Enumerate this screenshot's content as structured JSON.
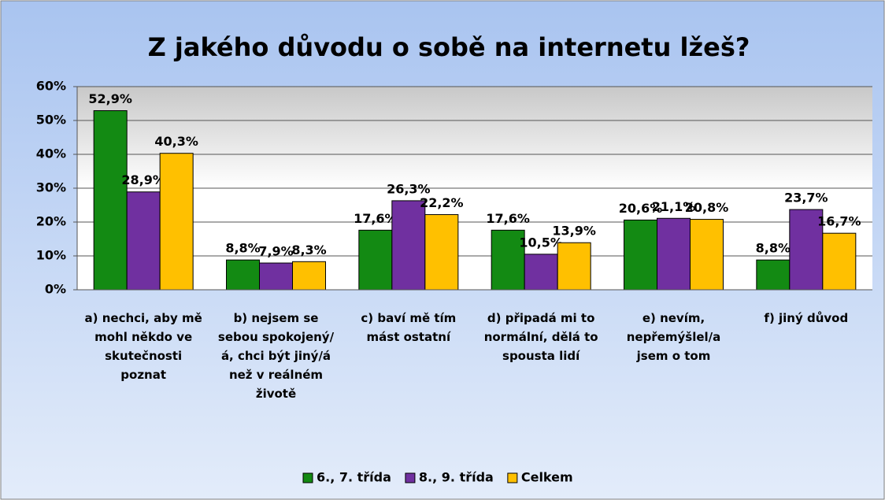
{
  "chart_data": {
    "type": "bar",
    "title": "Z jakého důvodu o sobě na internetu lžeš?",
    "categories": [
      "a) nechci,  aby mě mohl někdo ve skutečnosti poznat",
      "b) nejsem se sebou spokojený/á, chci být jiný/á než v reálném životě",
      "c) baví mě tím mást ostatní",
      "d) připadá  mi to normální, dělá to spousta lidí",
      "e) nevím, nepřemýšlel/a jsem o tom",
      "f) jiný  důvod"
    ],
    "series": [
      {
        "name": "6., 7. třída",
        "color": "#138a13",
        "values": [
          52.9,
          8.8,
          17.6,
          17.6,
          20.6,
          8.8
        ],
        "value_labels": [
          "52,9%",
          "8,8%",
          "17,6%",
          "17,6%",
          "20,6%",
          "8,8%"
        ]
      },
      {
        "name": "8., 9. třída",
        "color": "#7030a0",
        "values": [
          28.9,
          7.9,
          26.3,
          10.5,
          21.1,
          23.7
        ],
        "value_labels": [
          "28,9%",
          "7,9%",
          "26,3%",
          "10,5%",
          "21,1%",
          "23,7%"
        ]
      },
      {
        "name": "Celkem",
        "color": "#ffc000",
        "values": [
          40.3,
          8.3,
          22.2,
          13.9,
          20.8,
          16.7
        ],
        "value_labels": [
          "40,3%",
          "8,3%",
          "22,2%",
          "13,9%",
          "20,8%",
          "16,7%"
        ]
      }
    ],
    "ylim": [
      0,
      60
    ],
    "yticks": [
      {
        "value": 0,
        "label": "0%"
      },
      {
        "value": 10,
        "label": "10%"
      },
      {
        "value": 20,
        "label": "20%"
      },
      {
        "value": 30,
        "label": "30%"
      },
      {
        "value": 40,
        "label": "40%"
      },
      {
        "value": 50,
        "label": "50%"
      },
      {
        "value": 60,
        "label": "60%"
      }
    ],
    "grid": true,
    "legend": "bottom"
  }
}
